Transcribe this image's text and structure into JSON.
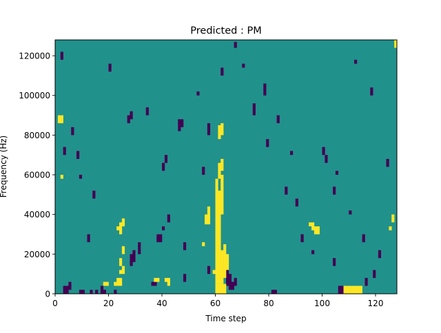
{
  "chart_data": {
    "type": "heatmap",
    "title": "Predicted : PM",
    "xlabel": "Time step",
    "ylabel": "Frequency (Hz)",
    "xlim": [
      0,
      128
    ],
    "ylim": [
      0,
      128000
    ],
    "x_ticks": [
      0,
      20,
      40,
      60,
      80,
      100,
      120
    ],
    "y_ticks": [
      0,
      20000,
      40000,
      60000,
      80000,
      100000,
      120000
    ],
    "x_tick_labels": [
      "0",
      "20",
      "40",
      "60",
      "80",
      "100",
      "120"
    ],
    "y_tick_labels": [
      "0",
      "20000",
      "40000",
      "60000",
      "80000",
      "100000",
      "120000"
    ],
    "n_time_bins": 128,
    "n_freq_bins": 128,
    "freq_bin_width_hz": 1000,
    "grid": false,
    "legend": "none",
    "value_levels": [
      -1,
      0,
      1
    ],
    "colors": {
      "-1": "#440154",
      "0": "#21918c",
      "1": "#fde725"
    },
    "cells_high": [
      [
        60,
        0,
        5
      ],
      [
        61,
        0,
        5
      ],
      [
        62,
        0,
        5
      ],
      [
        63,
        0,
        5
      ],
      [
        59,
        10,
        12
      ],
      [
        60,
        5,
        30
      ],
      [
        61,
        5,
        30
      ],
      [
        62,
        5,
        22
      ],
      [
        63,
        8,
        25
      ],
      [
        64,
        12,
        20
      ],
      [
        60,
        30,
        58
      ],
      [
        61,
        30,
        52
      ],
      [
        62,
        40,
        60
      ],
      [
        61,
        58,
        66
      ],
      [
        62,
        62,
        68
      ],
      [
        61,
        78,
        85
      ],
      [
        62,
        80,
        86
      ],
      [
        56,
        35,
        40
      ],
      [
        57,
        35,
        44
      ],
      [
        55,
        24,
        26
      ],
      [
        24,
        10,
        12
      ],
      [
        24,
        14,
        18
      ],
      [
        25,
        10,
        14
      ],
      [
        25,
        20,
        24
      ],
      [
        23,
        32,
        34
      ],
      [
        24,
        30,
        36
      ],
      [
        25,
        34,
        38
      ],
      [
        22,
        4,
        6
      ],
      [
        23,
        4,
        8
      ],
      [
        24,
        4,
        8
      ],
      [
        37,
        6,
        8
      ],
      [
        38,
        6,
        8
      ],
      [
        41,
        6,
        8
      ],
      [
        42,
        4,
        8
      ],
      [
        108,
        0,
        4
      ],
      [
        109,
        0,
        4
      ],
      [
        110,
        0,
        4
      ],
      [
        111,
        0,
        4
      ],
      [
        112,
        0,
        4
      ],
      [
        113,
        0,
        4
      ],
      [
        114,
        0,
        4
      ],
      [
        18,
        4,
        6
      ],
      [
        19,
        4,
        6
      ],
      [
        1,
        86,
        90
      ],
      [
        2,
        86,
        90
      ],
      [
        2,
        58,
        60
      ],
      [
        95,
        34,
        36
      ],
      [
        96,
        32,
        36
      ],
      [
        97,
        30,
        34
      ],
      [
        98,
        30,
        34
      ],
      [
        125,
        32,
        34
      ],
      [
        126,
        36,
        40
      ],
      [
        127,
        124,
        128
      ]
    ],
    "cells_low": [
      [
        3,
        0,
        4
      ],
      [
        4,
        0,
        4
      ],
      [
        5,
        2,
        6
      ],
      [
        9,
        0,
        2
      ],
      [
        10,
        0,
        2
      ],
      [
        13,
        0,
        2
      ],
      [
        15,
        0,
        2
      ],
      [
        17,
        0,
        4
      ],
      [
        18,
        0,
        2
      ],
      [
        22,
        0,
        2
      ],
      [
        36,
        4,
        6
      ],
      [
        37,
        4,
        6
      ],
      [
        48,
        6,
        10
      ],
      [
        57,
        10,
        14
      ],
      [
        62,
        12,
        18
      ],
      [
        64,
        4,
        14
      ],
      [
        65,
        2,
        10
      ],
      [
        66,
        2,
        6
      ],
      [
        67,
        4,
        8
      ],
      [
        81,
        0,
        2
      ],
      [
        82,
        0,
        2
      ],
      [
        106,
        0,
        4
      ],
      [
        107,
        0,
        4
      ],
      [
        116,
        4,
        8
      ],
      [
        28,
        14,
        20
      ],
      [
        29,
        16,
        22
      ],
      [
        31,
        20,
        26
      ],
      [
        38,
        26,
        30
      ],
      [
        39,
        26,
        30
      ],
      [
        40,
        32,
        34
      ],
      [
        42,
        36,
        40
      ],
      [
        48,
        22,
        26
      ],
      [
        55,
        60,
        64
      ],
      [
        57,
        80,
        86
      ],
      [
        53,
        100,
        102
      ],
      [
        62,
        110,
        114
      ],
      [
        67,
        124,
        127
      ],
      [
        70,
        114,
        116
      ],
      [
        78,
        100,
        106
      ],
      [
        83,
        86,
        90
      ],
      [
        88,
        70,
        72
      ],
      [
        100,
        70,
        74
      ],
      [
        101,
        66,
        70
      ],
      [
        104,
        50,
        54
      ],
      [
        105,
        60,
        62
      ],
      [
        112,
        116,
        118
      ],
      [
        118,
        100,
        104
      ],
      [
        46,
        82,
        88
      ],
      [
        47,
        84,
        88
      ],
      [
        27,
        86,
        90
      ],
      [
        28,
        88,
        92
      ],
      [
        40,
        62,
        66
      ],
      [
        41,
        66,
        70
      ],
      [
        3,
        70,
        74
      ],
      [
        6,
        80,
        84
      ],
      [
        8,
        68,
        72
      ],
      [
        9,
        58,
        60
      ],
      [
        12,
        26,
        30
      ],
      [
        14,
        48,
        52
      ],
      [
        74,
        90,
        96
      ],
      [
        79,
        74,
        78
      ],
      [
        86,
        50,
        54
      ],
      [
        90,
        44,
        48
      ],
      [
        92,
        26,
        30
      ],
      [
        96,
        20,
        22
      ],
      [
        104,
        14,
        18
      ],
      [
        110,
        40,
        42
      ],
      [
        115,
        26,
        30
      ],
      [
        119,
        8,
        12
      ],
      [
        121,
        18,
        22
      ],
      [
        124,
        64,
        68
      ],
      [
        2,
        118,
        122
      ],
      [
        20,
        112,
        116
      ],
      [
        34,
        90,
        94
      ]
    ]
  }
}
